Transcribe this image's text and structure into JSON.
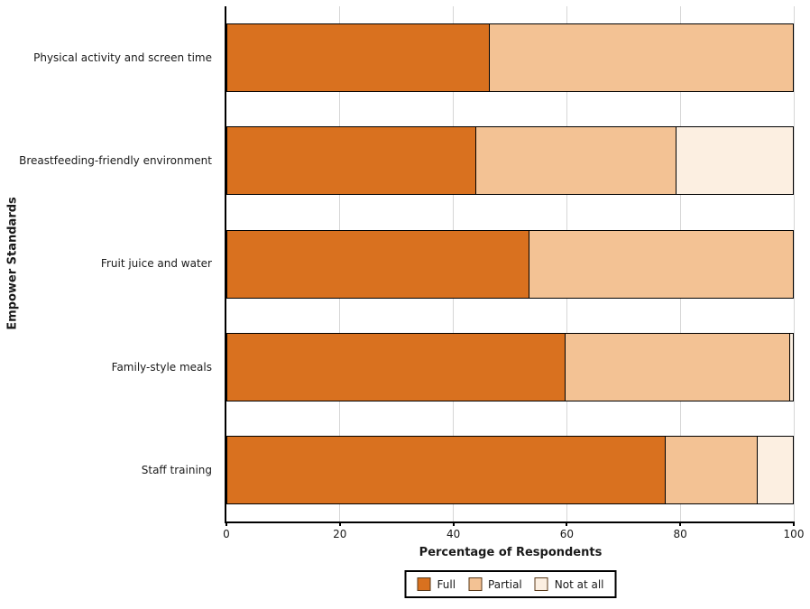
{
  "page_background": "#ffffff",
  "chart_data": {
    "type": "bar",
    "orientation": "horizontal-stacked",
    "title": "",
    "xlabel": "Percentage of Respondents",
    "ylabel": "Empower Standards",
    "xlim": [
      0,
      100
    ],
    "xticks": [
      0,
      20,
      40,
      60,
      80,
      100
    ],
    "grid": "vertical",
    "legend_position": "bottom",
    "categories": [
      "Physical activity and screen time",
      "Breastfeeding-friendly environment",
      "Fruit juice and water",
      "Family-style meals",
      "Staff training"
    ],
    "series": [
      {
        "name": "Full",
        "color": "#D9711F",
        "values": [
          46.5,
          44.1,
          53.4,
          59.8,
          77.5
        ]
      },
      {
        "name": "Partial",
        "color": "#F3C294",
        "values": [
          53.5,
          35.3,
          46.6,
          39.5,
          16.1
        ]
      },
      {
        "name": "Not at all",
        "color": "#FCEFE1",
        "values": [
          0,
          20.6,
          0,
          0.7,
          6.4
        ]
      }
    ],
    "bar_edge_color": "#000000",
    "gridline_color": "#d6d6d6"
  }
}
